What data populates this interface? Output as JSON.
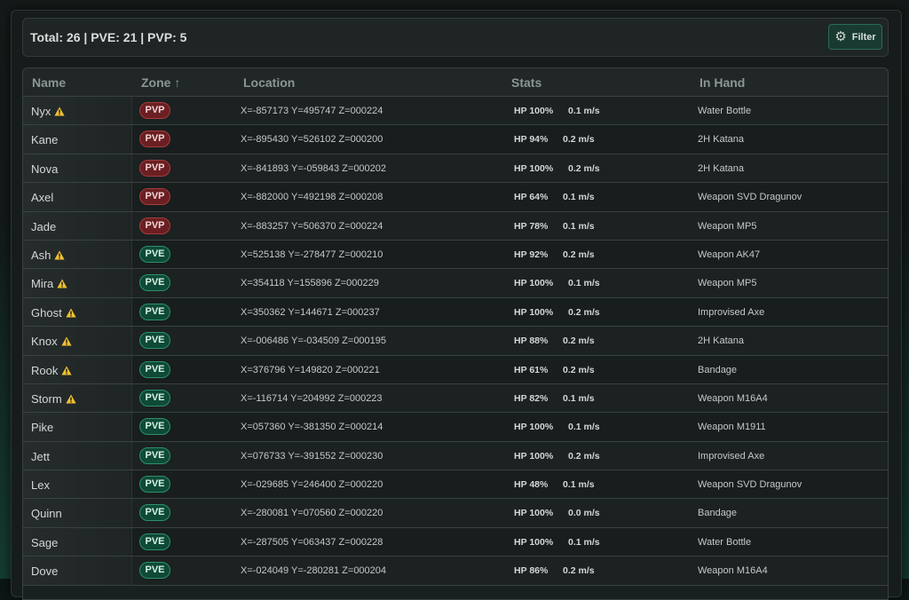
{
  "summary": {
    "text": "Total: 26 | PVE: 21 | PVP: 5"
  },
  "filter_button": {
    "label": "Filter",
    "icon": "gear-icon"
  },
  "columns": [
    "Name",
    "Zone ↑",
    "Location",
    "Stats",
    "In Hand"
  ],
  "colors": {
    "pvp_badge": "#6b1f22",
    "pve_badge": "#0e4a37",
    "warning": "#f2c230",
    "accent": "#193a30"
  },
  "rows": [
    {
      "name": "Nyx",
      "warning": true,
      "zone": "PVP",
      "location": "X=-857173 Y=495747 Z=000224",
      "hp": "HP 100%",
      "speed": "0.1 m/s",
      "in_hand": "Water Bottle"
    },
    {
      "name": "Kane",
      "warning": false,
      "zone": "PVP",
      "location": "X=-895430 Y=526102 Z=000200",
      "hp": "HP 94%",
      "speed": "0.2 m/s",
      "in_hand": "2H Katana"
    },
    {
      "name": "Nova",
      "warning": false,
      "zone": "PVP",
      "location": "X=-841893 Y=-059843 Z=000202",
      "hp": "HP 100%",
      "speed": "0.2 m/s",
      "in_hand": "2H Katana"
    },
    {
      "name": "Axel",
      "warning": false,
      "zone": "PVP",
      "location": "X=-882000 Y=492198 Z=000208",
      "hp": "HP 64%",
      "speed": "0.1 m/s",
      "in_hand": "Weapon SVD Dragunov"
    },
    {
      "name": "Jade",
      "warning": false,
      "zone": "PVP",
      "location": "X=-883257 Y=506370 Z=000224",
      "hp": "HP 78%",
      "speed": "0.1 m/s",
      "in_hand": "Weapon MP5"
    },
    {
      "name": "Ash",
      "warning": true,
      "zone": "PVE",
      "location": "X=525138 Y=-278477 Z=000210",
      "hp": "HP 92%",
      "speed": "0.2 m/s",
      "in_hand": "Weapon AK47"
    },
    {
      "name": "Mira",
      "warning": true,
      "zone": "PVE",
      "location": "X=354118 Y=155896 Z=000229",
      "hp": "HP 100%",
      "speed": "0.1 m/s",
      "in_hand": "Weapon MP5"
    },
    {
      "name": "Ghost",
      "warning": true,
      "zone": "PVE",
      "location": "X=350362 Y=144671 Z=000237",
      "hp": "HP 100%",
      "speed": "0.2 m/s",
      "in_hand": "Improvised Axe"
    },
    {
      "name": "Knox",
      "warning": true,
      "zone": "PVE",
      "location": "X=-006486 Y=-034509 Z=000195",
      "hp": "HP 88%",
      "speed": "0.2 m/s",
      "in_hand": "2H Katana"
    },
    {
      "name": "Rook",
      "warning": true,
      "zone": "PVE",
      "location": "X=376796 Y=149820 Z=000221",
      "hp": "HP 61%",
      "speed": "0.2 m/s",
      "in_hand": "Bandage"
    },
    {
      "name": "Storm",
      "warning": true,
      "zone": "PVE",
      "location": "X=-116714 Y=204992 Z=000223",
      "hp": "HP 82%",
      "speed": "0.1 m/s",
      "in_hand": "Weapon M16A4"
    },
    {
      "name": "Pike",
      "warning": false,
      "zone": "PVE",
      "location": "X=057360 Y=-381350 Z=000214",
      "hp": "HP 100%",
      "speed": "0.1 m/s",
      "in_hand": "Weapon M1911"
    },
    {
      "name": "Jett",
      "warning": false,
      "zone": "PVE",
      "location": "X=076733 Y=-391552 Z=000230",
      "hp": "HP 100%",
      "speed": "0.2 m/s",
      "in_hand": "Improvised Axe"
    },
    {
      "name": "Lex",
      "warning": false,
      "zone": "PVE",
      "location": "X=-029685 Y=246400 Z=000220",
      "hp": "HP 48%",
      "speed": "0.1 m/s",
      "in_hand": "Weapon SVD Dragunov"
    },
    {
      "name": "Quinn",
      "warning": false,
      "zone": "PVE",
      "location": "X=-280081 Y=070560 Z=000220",
      "hp": "HP 100%",
      "speed": "0.0 m/s",
      "in_hand": "Bandage"
    },
    {
      "name": "Sage",
      "warning": false,
      "zone": "PVE",
      "location": "X=-287505 Y=063437 Z=000228",
      "hp": "HP 100%",
      "speed": "0.1 m/s",
      "in_hand": "Water Bottle"
    },
    {
      "name": "Dove",
      "warning": false,
      "zone": "PVE",
      "location": "X=-024049 Y=-280281 Z=000204",
      "hp": "HP 86%",
      "speed": "0.2 m/s",
      "in_hand": "Weapon M16A4"
    }
  ]
}
